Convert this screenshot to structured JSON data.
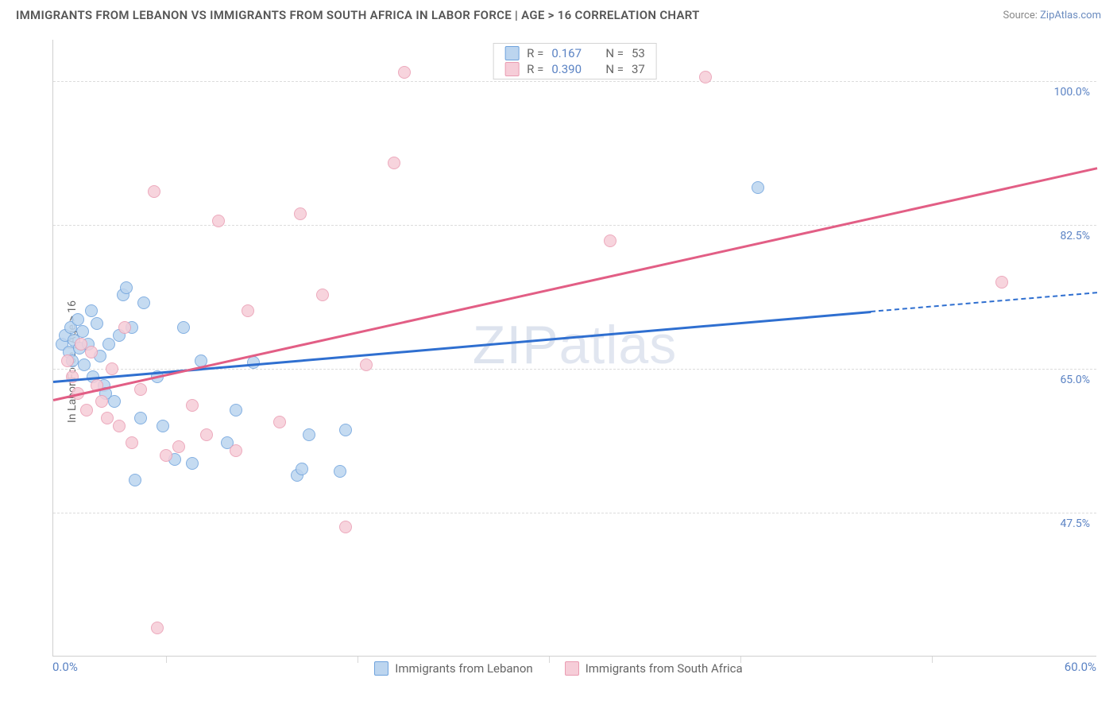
{
  "title": "IMMIGRANTS FROM LEBANON VS IMMIGRANTS FROM SOUTH AFRICA IN LABOR FORCE | AGE > 16 CORRELATION CHART",
  "source_label": "Source: ",
  "source_name": "ZipAtlas.com",
  "ylabel": "In Labor Force | Age > 16",
  "watermark": "ZIPatlas",
  "chart": {
    "type": "scatter",
    "xlim": [
      0,
      60
    ],
    "ylim": [
      30,
      105
    ],
    "x_ticks": [
      0,
      60
    ],
    "x_tick_labels": [
      "0.0%",
      "60.0%"
    ],
    "x_minor_ticks": [
      6.5,
      17.5,
      28.5,
      39.5,
      50.5
    ],
    "y_ticks": [
      47.5,
      65.0,
      82.5,
      100.0
    ],
    "y_tick_labels": [
      "47.5%",
      "65.0%",
      "82.5%",
      "100.0%"
    ],
    "grid_color": "#dcdcdc",
    "axis_color": "#cfcfcf",
    "background_color": "#ffffff",
    "point_radius": 8,
    "series": [
      {
        "name": "Immigrants from Lebanon",
        "fill": "#bcd5ef",
        "stroke": "#6fa3dd",
        "line_color": "#2f6fd0",
        "R": "0.167",
        "N": "53",
        "trend": {
          "x1": 0,
          "y1": 63.5,
          "x2": 47,
          "y2": 72.0,
          "dash_from_x": 47,
          "dash_to_x": 60,
          "dash_y2": 74.3
        },
        "points": [
          [
            0.5,
            68
          ],
          [
            0.7,
            69
          ],
          [
            0.9,
            67
          ],
          [
            1.0,
            70
          ],
          [
            1.1,
            66
          ],
          [
            1.2,
            68.5
          ],
          [
            1.4,
            71
          ],
          [
            1.5,
            67.5
          ],
          [
            1.7,
            69.5
          ],
          [
            1.8,
            65.5
          ],
          [
            2.0,
            68
          ],
          [
            2.2,
            72
          ],
          [
            2.3,
            64
          ],
          [
            2.5,
            70.5
          ],
          [
            2.7,
            66.5
          ],
          [
            2.9,
            63
          ],
          [
            3.0,
            62
          ],
          [
            3.2,
            68
          ],
          [
            3.5,
            61
          ],
          [
            3.8,
            69
          ],
          [
            4.0,
            74
          ],
          [
            4.2,
            74.8
          ],
          [
            4.5,
            70
          ],
          [
            4.7,
            51.5
          ],
          [
            5.0,
            59
          ],
          [
            5.2,
            73
          ],
          [
            6.0,
            64
          ],
          [
            6.3,
            58
          ],
          [
            7.0,
            54
          ],
          [
            7.5,
            70
          ],
          [
            8.0,
            53.5
          ],
          [
            8.5,
            66
          ],
          [
            10.0,
            56
          ],
          [
            10.5,
            60
          ],
          [
            11.5,
            65.8
          ],
          [
            14.0,
            52
          ],
          [
            14.3,
            52.8
          ],
          [
            14.7,
            57
          ],
          [
            16.5,
            52.5
          ],
          [
            16.8,
            57.5
          ],
          [
            40.5,
            87
          ]
        ]
      },
      {
        "name": "Immigrants from South Africa",
        "fill": "#f6cdd8",
        "stroke": "#ea9cb2",
        "line_color": "#e25e85",
        "R": "0.390",
        "N": "37",
        "trend": {
          "x1": 0,
          "y1": 61.3,
          "x2": 60,
          "y2": 89.5
        },
        "points": [
          [
            0.8,
            66
          ],
          [
            1.1,
            64
          ],
          [
            1.4,
            62
          ],
          [
            1.6,
            68
          ],
          [
            1.9,
            60
          ],
          [
            2.2,
            67
          ],
          [
            2.5,
            63
          ],
          [
            2.8,
            61
          ],
          [
            3.1,
            59
          ],
          [
            3.4,
            65
          ],
          [
            3.8,
            58
          ],
          [
            4.1,
            70
          ],
          [
            4.5,
            56
          ],
          [
            5.0,
            62.5
          ],
          [
            5.8,
            86.5
          ],
          [
            6.5,
            54.5
          ],
          [
            7.2,
            55.5
          ],
          [
            8.0,
            60.5
          ],
          [
            8.8,
            57
          ],
          [
            9.5,
            83
          ],
          [
            10.5,
            55
          ],
          [
            11.2,
            72
          ],
          [
            13.0,
            58.5
          ],
          [
            14.2,
            83.8
          ],
          [
            15.5,
            74
          ],
          [
            16.8,
            45.8
          ],
          [
            18.0,
            65.5
          ],
          [
            19.6,
            90
          ],
          [
            20.2,
            101
          ],
          [
            32.0,
            80.5
          ],
          [
            37.5,
            100.5
          ],
          [
            54.5,
            75.5
          ],
          [
            6.0,
            33.5
          ]
        ]
      }
    ]
  }
}
